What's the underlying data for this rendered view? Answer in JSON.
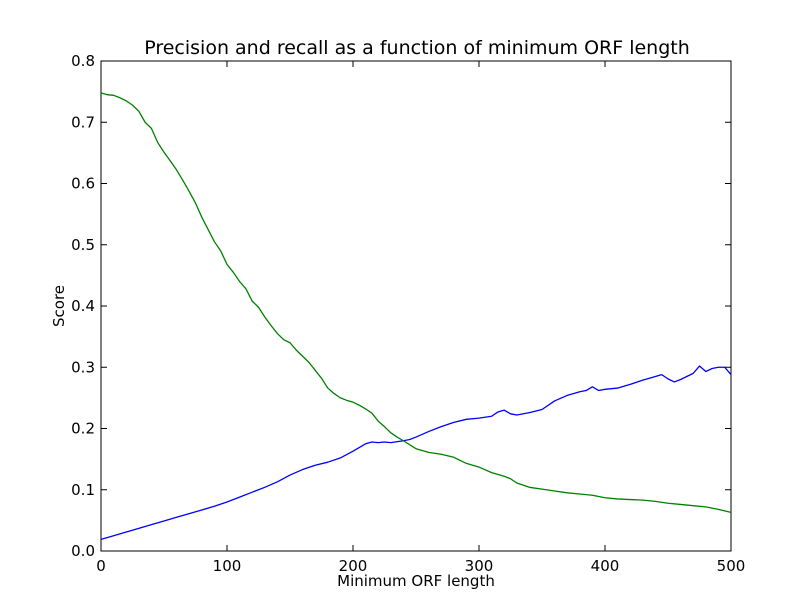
{
  "chart_data": {
    "type": "line",
    "title": "Precision and recall as a function of minimum ORF length",
    "xlabel": "Minimum ORF length",
    "ylabel": "Score",
    "xlim": [
      0,
      500
    ],
    "ylim": [
      0.0,
      0.8
    ],
    "xticks": [
      "0",
      "100",
      "200",
      "300",
      "400",
      "500"
    ],
    "yticks": [
      "0.0",
      "0.1",
      "0.2",
      "0.3",
      "0.4",
      "0.5",
      "0.6",
      "0.7",
      "0.8"
    ],
    "grid": false,
    "series": [
      {
        "color": "#0000ff",
        "x": [
          0,
          10,
          20,
          30,
          40,
          50,
          60,
          70,
          80,
          90,
          100,
          110,
          120,
          130,
          140,
          150,
          160,
          170,
          180,
          190,
          200,
          210,
          215,
          220,
          225,
          230,
          240,
          245,
          250,
          260,
          270,
          280,
          290,
          300,
          310,
          315,
          320,
          325,
          330,
          340,
          350,
          360,
          370,
          380,
          385,
          390,
          395,
          400,
          410,
          420,
          430,
          440,
          445,
          450,
          455,
          460,
          470,
          475,
          480,
          485,
          490,
          495,
          500
        ],
        "y": [
          0.019,
          0.025,
          0.031,
          0.037,
          0.043,
          0.049,
          0.055,
          0.061,
          0.067,
          0.073,
          0.08,
          0.088,
          0.096,
          0.104,
          0.113,
          0.124,
          0.133,
          0.14,
          0.145,
          0.152,
          0.163,
          0.175,
          0.178,
          0.177,
          0.178,
          0.177,
          0.18,
          0.182,
          0.186,
          0.195,
          0.203,
          0.21,
          0.215,
          0.217,
          0.22,
          0.227,
          0.23,
          0.224,
          0.222,
          0.226,
          0.231,
          0.245,
          0.254,
          0.26,
          0.262,
          0.268,
          0.262,
          0.264,
          0.266,
          0.272,
          0.279,
          0.285,
          0.288,
          0.281,
          0.276,
          0.28,
          0.29,
          0.302,
          0.293,
          0.298,
          0.3,
          0.3,
          0.288
        ]
      },
      {
        "color": "#008000",
        "x": [
          0,
          5,
          10,
          15,
          20,
          25,
          30,
          35,
          40,
          45,
          50,
          55,
          60,
          65,
          70,
          75,
          80,
          85,
          90,
          95,
          100,
          105,
          110,
          115,
          120,
          125,
          130,
          135,
          140,
          145,
          150,
          155,
          160,
          165,
          170,
          175,
          180,
          185,
          190,
          195,
          200,
          205,
          210,
          215,
          220,
          225,
          230,
          235,
          240,
          250,
          260,
          270,
          280,
          290,
          300,
          310,
          320,
          325,
          330,
          340,
          350,
          360,
          370,
          380,
          390,
          400,
          410,
          420,
          430,
          440,
          450,
          460,
          470,
          480,
          490,
          500
        ],
        "y": [
          0.748,
          0.745,
          0.744,
          0.74,
          0.735,
          0.728,
          0.718,
          0.7,
          0.69,
          0.667,
          0.651,
          0.637,
          0.622,
          0.605,
          0.587,
          0.568,
          0.545,
          0.525,
          0.505,
          0.49,
          0.468,
          0.455,
          0.44,
          0.428,
          0.408,
          0.398,
          0.382,
          0.368,
          0.355,
          0.345,
          0.34,
          0.328,
          0.318,
          0.308,
          0.295,
          0.282,
          0.266,
          0.257,
          0.25,
          0.246,
          0.243,
          0.238,
          0.232,
          0.225,
          0.212,
          0.203,
          0.193,
          0.186,
          0.18,
          0.167,
          0.161,
          0.158,
          0.153,
          0.143,
          0.137,
          0.128,
          0.122,
          0.118,
          0.111,
          0.104,
          0.101,
          0.098,
          0.095,
          0.093,
          0.091,
          0.087,
          0.085,
          0.084,
          0.083,
          0.081,
          0.078,
          0.076,
          0.074,
          0.072,
          0.068,
          0.063
        ]
      }
    ]
  }
}
